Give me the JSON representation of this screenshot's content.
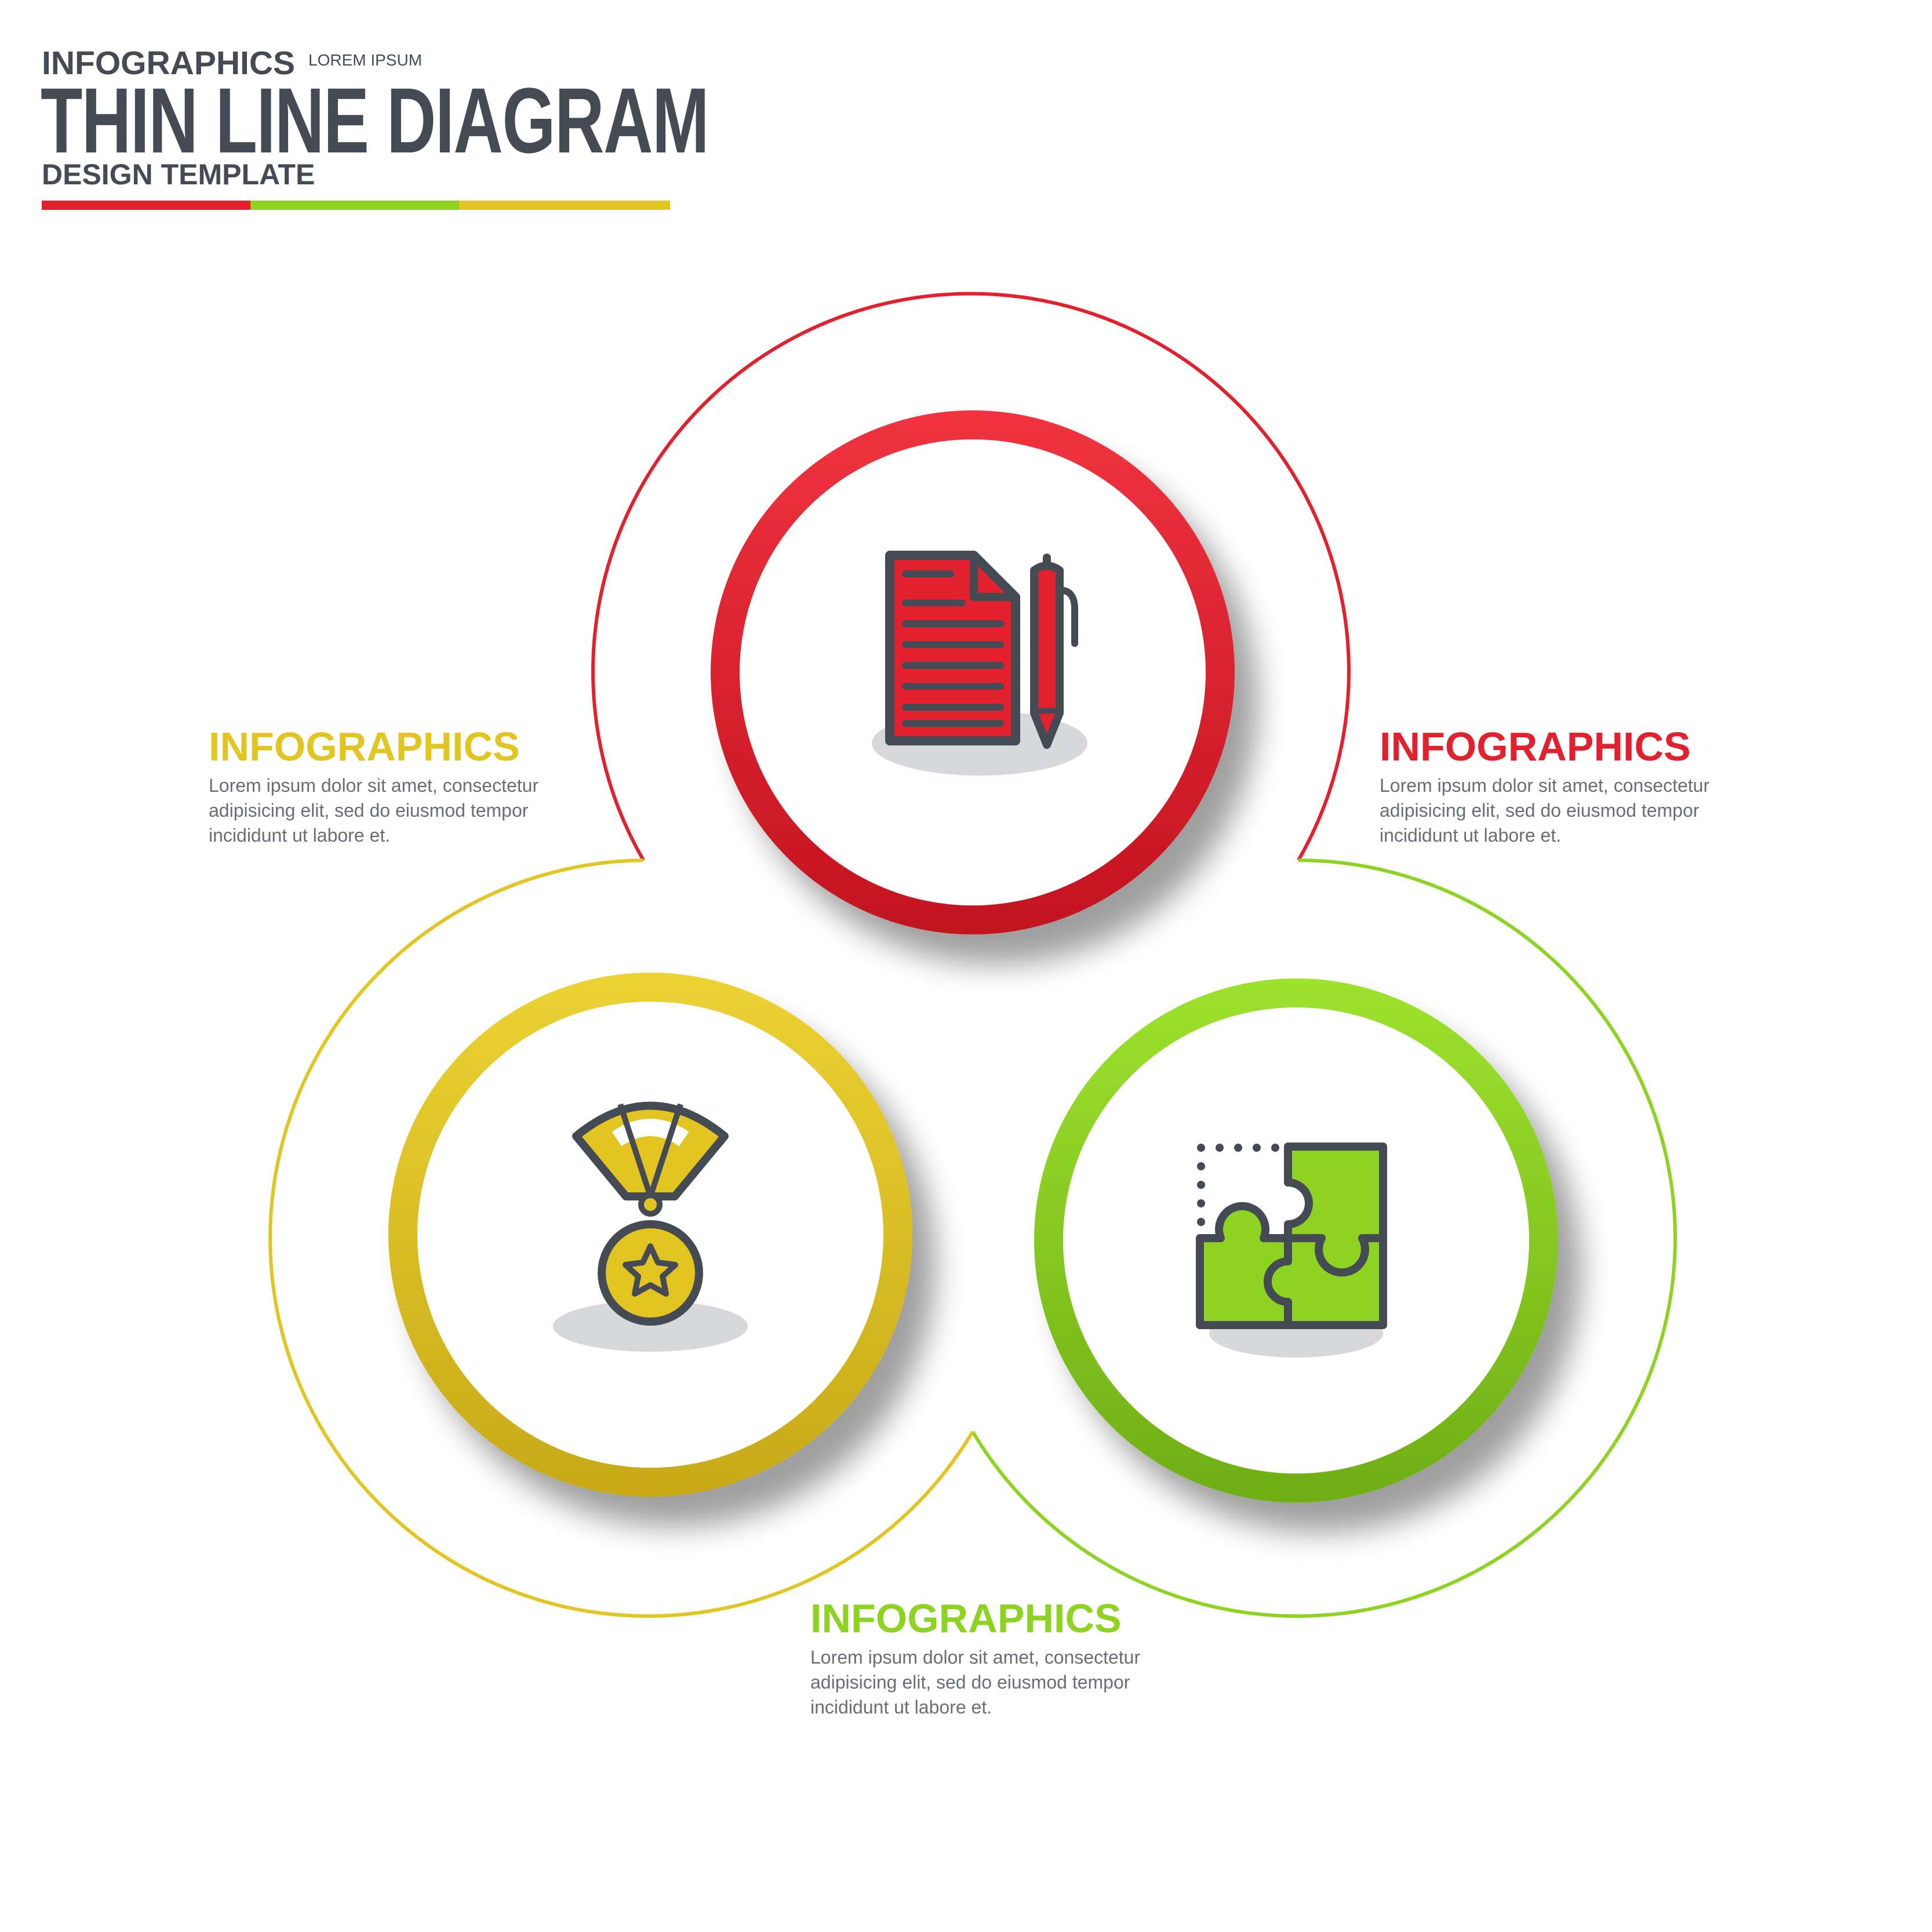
{
  "header": {
    "overline": "INFOGRAPHICS",
    "tag": "LOREM IPSUM",
    "title": "THIN LINE DIAGRAM",
    "subtitle": "DESIGN TEMPLATE"
  },
  "colors": {
    "red": "#e3202e",
    "green": "#8fd322",
    "yellow": "#e3c522",
    "dark": "#454b55",
    "text_gray": "#6a6e74"
  },
  "sections": [
    {
      "id": "red",
      "title": "INFOGRAPHICS",
      "body": [
        "Lorem ipsum dolor sit amet, consectetur",
        "adipisicing elit, sed do eiusmod tempor",
        "incididunt ut labore et."
      ],
      "icon": "document-pen-icon"
    },
    {
      "id": "yellow",
      "title": "INFOGRAPHICS",
      "body": [
        "Lorem ipsum dolor sit amet, consectetur",
        "adipisicing elit, sed do eiusmod tempor",
        "incididunt ut labore et."
      ],
      "icon": "medal-icon"
    },
    {
      "id": "green",
      "title": "INFOGRAPHICS",
      "body": [
        "Lorem ipsum dolor sit amet, consectetur",
        "adipisicing elit, sed do eiusmod tempor",
        "incididunt ut labore et."
      ],
      "icon": "puzzle-icon"
    }
  ]
}
